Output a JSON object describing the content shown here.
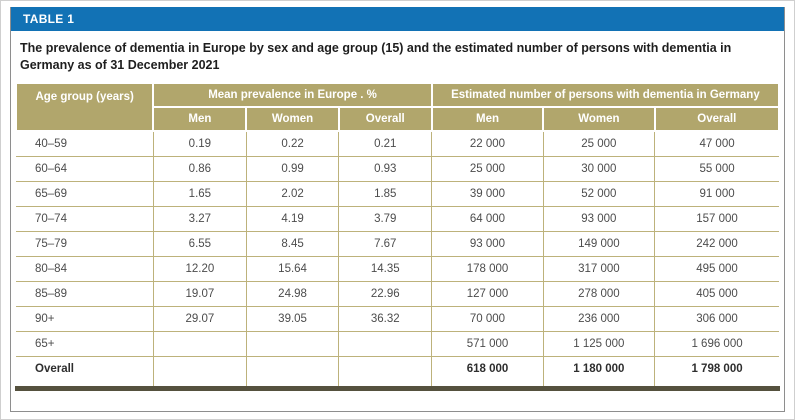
{
  "theme": {
    "accent": "#1272b5",
    "gold": "#b1a66c",
    "grid": "#bdb27b",
    "darkbar": "#55513e"
  },
  "panel": {
    "tag_label": "TABLE 1",
    "caption": "The prevalence of dementia in Europe by sex and age group (15) and the estimated number of persons with dementia in Germany as of 31 December 2021"
  },
  "table": {
    "corner_header": "Age group (years)",
    "group_headers": {
      "prevalence": "Mean prevalence in Europe . %",
      "germany": "Estimated number of persons with dementia in Germany"
    },
    "sub_headers": [
      "Men",
      "Women",
      "Overall",
      "Men",
      "Women",
      "Overall"
    ],
    "rows": [
      {
        "age_group": "40–59",
        "prev_men": "0.19",
        "prev_women": "0.22",
        "prev_overall": "0.21",
        "num_men": "22 000",
        "num_women": "25 000",
        "num_overall": "47 000",
        "emphasis": false
      },
      {
        "age_group": "60–64",
        "prev_men": "0.86",
        "prev_women": "0.99",
        "prev_overall": "0.93",
        "num_men": "25 000",
        "num_women": "30 000",
        "num_overall": "55 000",
        "emphasis": false
      },
      {
        "age_group": "65–69",
        "prev_men": "1.65",
        "prev_women": "2.02",
        "prev_overall": "1.85",
        "num_men": "39 000",
        "num_women": "52 000",
        "num_overall": "91 000",
        "emphasis": false
      },
      {
        "age_group": "70–74",
        "prev_men": "3.27",
        "prev_women": "4.19",
        "prev_overall": "3.79",
        "num_men": "64 000",
        "num_women": "93 000",
        "num_overall": "157 000",
        "emphasis": false
      },
      {
        "age_group": "75–79",
        "prev_men": "6.55",
        "prev_women": "8.45",
        "prev_overall": "7.67",
        "num_men": "93 000",
        "num_women": "149 000",
        "num_overall": "242 000",
        "emphasis": false
      },
      {
        "age_group": "80–84",
        "prev_men": "12.20",
        "prev_women": "15.64",
        "prev_overall": "14.35",
        "num_men": "178 000",
        "num_women": "317 000",
        "num_overall": "495 000",
        "emphasis": false
      },
      {
        "age_group": "85–89",
        "prev_men": "19.07",
        "prev_women": "24.98",
        "prev_overall": "22.96",
        "num_men": "127 000",
        "num_women": "278 000",
        "num_overall": "405 000",
        "emphasis": false
      },
      {
        "age_group": "90+",
        "prev_men": "29.07",
        "prev_women": "39.05",
        "prev_overall": "36.32",
        "num_men": "70 000",
        "num_women": "236 000",
        "num_overall": "306 000",
        "emphasis": false
      },
      {
        "age_group": "65+",
        "prev_men": "",
        "prev_women": "",
        "prev_overall": "",
        "num_men": "571 000",
        "num_women": "1 125 000",
        "num_overall": "1 696 000",
        "emphasis": false
      },
      {
        "age_group": "Overall",
        "prev_men": "",
        "prev_women": "",
        "prev_overall": "",
        "num_men": "618 000",
        "num_women": "1 180 000",
        "num_overall": "1 798 000",
        "emphasis": true
      }
    ]
  }
}
